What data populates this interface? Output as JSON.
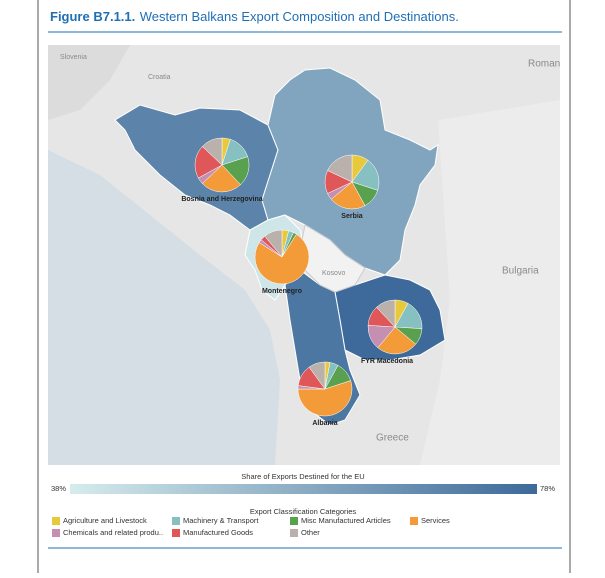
{
  "header": {
    "figure_label": "Figure B7.1.1.",
    "title": "Western Balkans Export Composition and Destinations."
  },
  "map": {
    "place_labels": [
      "Slovenia",
      "Croatia",
      "Roman",
      "Bulgaria",
      "Kosovo",
      "Greece"
    ]
  },
  "chart_data": {
    "type": "pie-map",
    "categories": [
      "Agriculture and Livestock",
      "Machinery & Transport",
      "Misc Manufactured Articles",
      "Services",
      "Chemicals and related produ..",
      "Manufactured Goods",
      "Other"
    ],
    "colors": [
      "#e8c93b",
      "#86c0c0",
      "#59a14f",
      "#f29b38",
      "#c48fb0",
      "#e05759",
      "#bab0ac"
    ],
    "series": [
      {
        "name": "Bosnia and Herzegovina",
        "eu_share": 70,
        "values": [
          5,
          15,
          18,
          25,
          4,
          20,
          13
        ]
      },
      {
        "name": "Serbia",
        "eu_share": 60,
        "values": [
          10,
          20,
          12,
          22,
          4,
          14,
          18
        ]
      },
      {
        "name": "Montenegro",
        "eu_share": 40,
        "values": [
          4,
          3,
          2,
          75,
          2,
          3,
          11
        ]
      },
      {
        "name": "FYR Macedonia",
        "eu_share": 78,
        "values": [
          8,
          18,
          10,
          25,
          15,
          12,
          12
        ]
      },
      {
        "name": "Albania",
        "eu_share": 74,
        "values": [
          3,
          5,
          12,
          55,
          2,
          13,
          10
        ]
      }
    ],
    "color_scale": {
      "title": "Share of Exports Destined for the EU",
      "min": {
        "value": 38,
        "label": "38%"
      },
      "max": {
        "value": 78,
        "label": "78%"
      },
      "colors": [
        "#d6ecec",
        "#3d6a9a"
      ]
    },
    "legend_title": "Export Classification Categories"
  }
}
